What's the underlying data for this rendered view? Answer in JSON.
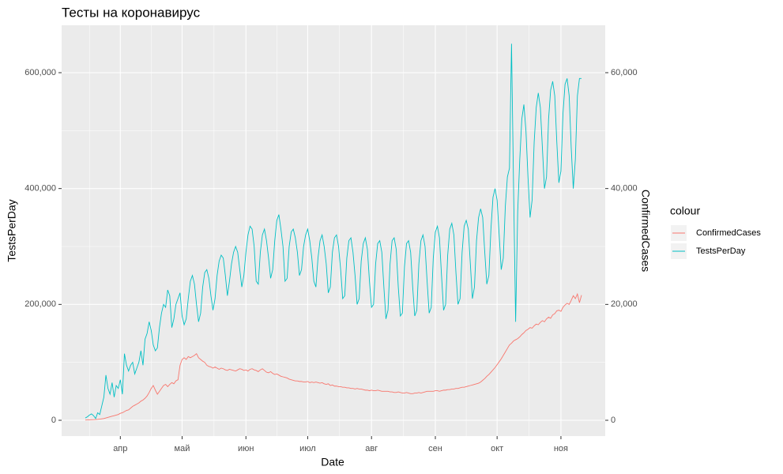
{
  "chart_data": {
    "type": "line",
    "title": "Тесты на коронавирус",
    "x_label": "Date",
    "y_label": "TestsPerDay",
    "y2_label": "ConfirmedCases",
    "legend_title": "colour",
    "legend": "right",
    "grid": true,
    "categories": [
      null,
      null,
      null,
      null,
      null,
      null,
      null,
      null,
      null,
      null,
      null,
      null,
      null,
      null,
      null,
      null,
      null,
      "апр",
      null,
      null,
      null,
      null,
      null,
      null,
      null,
      null,
      null,
      null,
      null,
      null,
      null,
      null,
      null,
      null,
      null,
      null,
      null,
      null,
      null,
      null,
      null,
      null,
      null,
      null,
      null,
      null,
      null,
      "май",
      null,
      null,
      null,
      null,
      null,
      null,
      null,
      null,
      null,
      null,
      null,
      null,
      null,
      null,
      null,
      null,
      null,
      null,
      null,
      null,
      null,
      null,
      null,
      null,
      null,
      null,
      null,
      null,
      null,
      null,
      "июн",
      null,
      null,
      null,
      null,
      null,
      null,
      null,
      null,
      null,
      null,
      null,
      null,
      null,
      null,
      null,
      null,
      null,
      null,
      null,
      null,
      null,
      null,
      null,
      null,
      null,
      null,
      null,
      null,
      null,
      "июл",
      null,
      null,
      null,
      null,
      null,
      null,
      null,
      null,
      null,
      null,
      null,
      null,
      null,
      null,
      null,
      null,
      null,
      null,
      null,
      null,
      null,
      null,
      null,
      null,
      null,
      null,
      null,
      null,
      null,
      null,
      "авг",
      null,
      null,
      null,
      null,
      null,
      null,
      null,
      null,
      null,
      null,
      null,
      null,
      null,
      null,
      null,
      null,
      null,
      null,
      null,
      null,
      null,
      null,
      null,
      null,
      null,
      null,
      null,
      null,
      null,
      null,
      "сен",
      null,
      null,
      null,
      null,
      null,
      null,
      null,
      null,
      null,
      null,
      null,
      null,
      null,
      null,
      null,
      null,
      null,
      null,
      null,
      null,
      null,
      null,
      null,
      null,
      null,
      null,
      null,
      null,
      null,
      "окт",
      null,
      null,
      null,
      null,
      null,
      null,
      null,
      null,
      null,
      null,
      null,
      null,
      null,
      null,
      null,
      null,
      null,
      null,
      null,
      null,
      null,
      null,
      null,
      null,
      null,
      null,
      null,
      null,
      null,
      null,
      "ноя",
      null,
      null,
      null,
      null,
      null,
      null,
      null,
      null,
      null,
      null
    ],
    "ylim": [
      -27273,
      681818
    ],
    "yticks": [
      0,
      {
        "value": 200000,
        "label": "200,000"
      },
      {
        "value": 400000,
        "label": "400,000"
      },
      {
        "value": 600000,
        "label": "600,000"
      }
    ],
    "y2lim": [
      -2727,
      68182
    ],
    "y2ticks": [
      0,
      {
        "value": 20000,
        "label": "20,000"
      },
      {
        "value": 40000,
        "label": "40,000"
      },
      {
        "value": 60000,
        "label": "60,000"
      }
    ],
    "series": [
      {
        "name": "ConfirmedCases",
        "color": "#F8766D",
        "axis": "y2",
        "values": [
          50,
          60,
          80,
          100,
          110,
          130,
          160,
          200,
          250,
          300,
          400,
          500,
          600,
          700,
          800,
          900,
          1000,
          1200,
          1300,
          1500,
          1700,
          1800,
          2100,
          2400,
          2600,
          2800,
          3000,
          3300,
          3500,
          3800,
          4200,
          4800,
          5500,
          6000,
          5200,
          4500,
          5000,
          5500,
          6000,
          6200,
          5800,
          6200,
          6500,
          6300,
          6800,
          7000,
          9500,
          10500,
          10800,
          10500,
          11000,
          10800,
          11000,
          11200,
          11500,
          10800,
          10500,
          10200,
          10000,
          9500,
          9300,
          9200,
          9000,
          9200,
          9000,
          8800,
          9000,
          8900,
          8700,
          8600,
          8800,
          8700,
          8600,
          8500,
          8700,
          8900,
          8800,
          8600,
          8700,
          8500,
          8800,
          8900,
          8700,
          8600,
          8400,
          8700,
          8900,
          8600,
          8300,
          8200,
          8400,
          8100,
          7900,
          8000,
          7800,
          7600,
          7500,
          7400,
          7300,
          7100,
          7000,
          6900,
          6800,
          6800,
          6700,
          6700,
          6600,
          6600,
          6700,
          6500,
          6600,
          6500,
          6600,
          6500,
          6400,
          6500,
          6300,
          6200,
          6300,
          6000,
          6100,
          5900,
          5900,
          5800,
          5800,
          5700,
          5700,
          5600,
          5600,
          5500,
          5500,
          5400,
          5500,
          5400,
          5400,
          5300,
          5200,
          5200,
          5100,
          5200,
          5100,
          5100,
          5200,
          5100,
          5000,
          5000,
          5000,
          5000,
          4900,
          4900,
          4800,
          4800,
          4900,
          4800,
          4700,
          4700,
          4800,
          4700,
          4600,
          4600,
          4700,
          4700,
          4800,
          4700,
          4800,
          4900,
          5000,
          5000,
          5000,
          5000,
          5100,
          5100,
          5000,
          5100,
          5200,
          5200,
          5300,
          5300,
          5400,
          5400,
          5500,
          5500,
          5600,
          5700,
          5700,
          5800,
          5900,
          6000,
          6100,
          6200,
          6300,
          6400,
          6600,
          6900,
          7200,
          7600,
          7900,
          8300,
          8700,
          9100,
          9600,
          10100,
          10600,
          11200,
          11800,
          12400,
          13000,
          13300,
          13700,
          13900,
          14100,
          14400,
          14800,
          15100,
          15500,
          15700,
          16000,
          15900,
          16300,
          16600,
          16500,
          16900,
          17200,
          17000,
          17500,
          17800,
          17600,
          18200,
          18400,
          18900,
          19000,
          18800,
          19500,
          19900,
          20200,
          20000,
          20700,
          21500,
          21000,
          21800,
          20300,
          21600
        ]
      },
      {
        "name": "TestsPerDay",
        "color": "#00BFC4",
        "values": [
          4000,
          6000,
          9000,
          11000,
          8000,
          3000,
          13000,
          10000,
          25000,
          40000,
          78000,
          55000,
          45000,
          65000,
          40000,
          60000,
          55000,
          70000,
          45000,
          115000,
          95000,
          85000,
          95000,
          100000,
          80000,
          90000,
          100000,
          120000,
          95000,
          140000,
          150000,
          170000,
          155000,
          130000,
          120000,
          125000,
          160000,
          185000,
          200000,
          195000,
          225000,
          215000,
          160000,
          175000,
          200000,
          210000,
          220000,
          180000,
          165000,
          175000,
          210000,
          240000,
          250000,
          235000,
          200000,
          170000,
          185000,
          230000,
          255000,
          260000,
          245000,
          215000,
          190000,
          210000,
          250000,
          275000,
          285000,
          280000,
          250000,
          215000,
          240000,
          270000,
          290000,
          300000,
          290000,
          260000,
          230000,
          250000,
          290000,
          320000,
          335000,
          330000,
          300000,
          240000,
          235000,
          290000,
          320000,
          330000,
          310000,
          280000,
          245000,
          260000,
          310000,
          345000,
          355000,
          330000,
          300000,
          240000,
          245000,
          300000,
          325000,
          330000,
          315000,
          290000,
          250000,
          260000,
          300000,
          320000,
          330000,
          310000,
          280000,
          240000,
          230000,
          280000,
          310000,
          320000,
          300000,
          270000,
          220000,
          230000,
          290000,
          315000,
          320000,
          300000,
          260000,
          210000,
          215000,
          280000,
          310000,
          315000,
          290000,
          250000,
          200000,
          210000,
          275000,
          305000,
          315000,
          295000,
          240000,
          195000,
          200000,
          270000,
          305000,
          310000,
          290000,
          230000,
          175000,
          190000,
          270000,
          310000,
          315000,
          295000,
          230000,
          180000,
          185000,
          265000,
          305000,
          310000,
          290000,
          230000,
          180000,
          190000,
          270000,
          310000,
          320000,
          300000,
          240000,
          185000,
          195000,
          280000,
          325000,
          335000,
          315000,
          250000,
          190000,
          200000,
          285000,
          330000,
          340000,
          320000,
          255000,
          200000,
          210000,
          290000,
          335000,
          345000,
          330000,
          270000,
          210000,
          230000,
          310000,
          350000,
          365000,
          350000,
          290000,
          235000,
          250000,
          330000,
          385000,
          400000,
          380000,
          320000,
          260000,
          280000,
          370000,
          420000,
          435000,
          650000,
          400000,
          170000,
          360000,
          450000,
          520000,
          545000,
          500000,
          420000,
          350000,
          380000,
          480000,
          540000,
          565000,
          540000,
          470000,
          400000,
          420000,
          520000,
          570000,
          585000,
          560000,
          480000,
          410000,
          430000,
          530000,
          580000,
          590000,
          560000,
          470000,
          400000,
          450000,
          560000,
          590000,
          590000
        ]
      }
    ]
  }
}
